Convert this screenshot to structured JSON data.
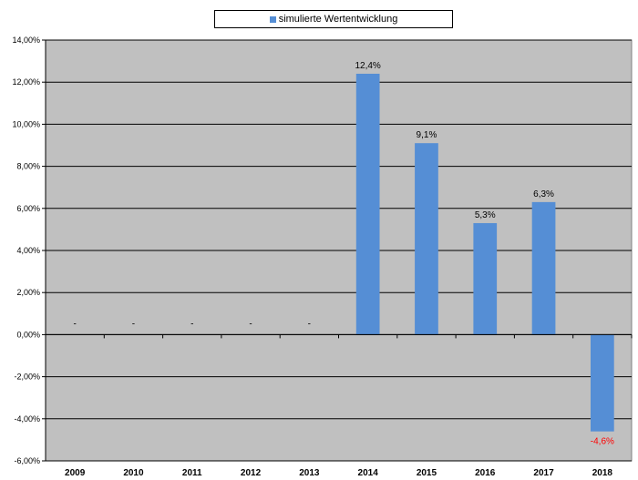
{
  "colors": {
    "plot_background": "#c0c0c0",
    "bar": "#558ed5",
    "negative_label": "#ff0000",
    "gridline": "#000000"
  },
  "chart_data": {
    "type": "bar",
    "categories": [
      "2009",
      "2010",
      "2011",
      "2012",
      "2013",
      "2014",
      "2015",
      "2016",
      "2017",
      "2018"
    ],
    "series": [
      {
        "name": "simulierte Wertentwicklung",
        "values": [
          null,
          null,
          null,
          null,
          null,
          12.4,
          9.1,
          5.3,
          6.3,
          -4.6
        ],
        "data_labels": [
          "-",
          "-",
          "-",
          "-",
          "-",
          "12,4%",
          "9,1%",
          "5,3%",
          "6,3%",
          "-4,6%"
        ]
      }
    ],
    "yticks": [
      14,
      12,
      10,
      8,
      6,
      4,
      2,
      0,
      -2,
      -4,
      -6
    ],
    "ytick_labels": [
      "14,00%",
      "12,00%",
      "10,00%",
      "8,00%",
      "6,00%",
      "4,00%",
      "2,00%",
      "0,00%",
      "-2,00%",
      "-4,00%",
      "-6,00%"
    ],
    "ylim": [
      -6,
      14
    ],
    "grid": true,
    "legend": "top-center"
  }
}
